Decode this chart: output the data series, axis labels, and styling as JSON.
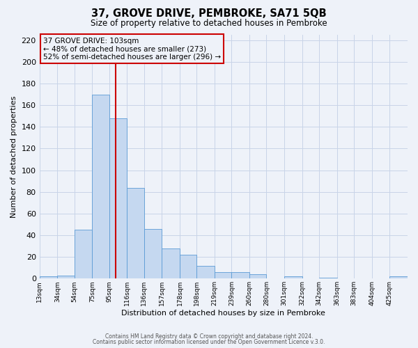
{
  "title": "37, GROVE DRIVE, PEMBROKE, SA71 5QB",
  "subtitle": "Size of property relative to detached houses in Pembroke",
  "xlabel": "Distribution of detached houses by size in Pembroke",
  "ylabel": "Number of detached properties",
  "bin_labels": [
    "13sqm",
    "34sqm",
    "54sqm",
    "75sqm",
    "95sqm",
    "116sqm",
    "136sqm",
    "157sqm",
    "178sqm",
    "198sqm",
    "219sqm",
    "239sqm",
    "260sqm",
    "280sqm",
    "301sqm",
    "322sqm",
    "342sqm",
    "363sqm",
    "383sqm",
    "404sqm",
    "425sqm"
  ],
  "bin_edges": [
    13,
    34,
    54,
    75,
    95,
    116,
    136,
    157,
    178,
    198,
    219,
    239,
    260,
    280,
    301,
    322,
    342,
    363,
    383,
    404,
    425,
    446
  ],
  "bar_heights": [
    2,
    3,
    45,
    170,
    148,
    84,
    46,
    28,
    22,
    12,
    6,
    6,
    4,
    0,
    2,
    0,
    1,
    0,
    0,
    0,
    2
  ],
  "bar_color": "#c5d8f0",
  "bar_edge_color": "#5b9bd5",
  "grid_color": "#c8d4e8",
  "background_color": "#eef2f9",
  "vline_x": 103,
  "vline_color": "#cc0000",
  "ylim": [
    0,
    225
  ],
  "yticks": [
    0,
    20,
    40,
    60,
    80,
    100,
    120,
    140,
    160,
    180,
    200,
    220
  ],
  "annotation_title": "37 GROVE DRIVE: 103sqm",
  "annotation_line1": "← 48% of detached houses are smaller (273)",
  "annotation_line2": "52% of semi-detached houses are larger (296) →",
  "annotation_box_color": "#cc0000",
  "footer1": "Contains HM Land Registry data © Crown copyright and database right 2024.",
  "footer2": "Contains public sector information licensed under the Open Government Licence v.3.0."
}
